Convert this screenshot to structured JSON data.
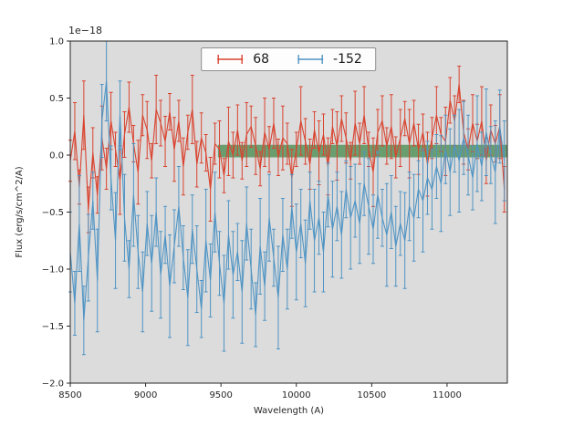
{
  "chart_data": {
    "type": "line",
    "title": "",
    "xlabel": "Wavelength (A)",
    "ylabel": "Flux (erg/s/cm^2/A)",
    "offset_text": "1e−18",
    "xlim": [
      8500,
      11400
    ],
    "ylim": [
      -2.0,
      1.0
    ],
    "xticks": [
      8500,
      9000,
      9500,
      10000,
      10500,
      11000
    ],
    "yticks": [
      -2.0,
      -1.5,
      -1.0,
      -0.5,
      0.0,
      0.5,
      1.0
    ],
    "grid": false,
    "legend_position": "upper center",
    "axes_bg": "#dcdcdc",
    "band": {
      "x0": 9480,
      "x1": 11400,
      "y0": -0.02,
      "y1": 0.09,
      "color": "rgba(46,125,50,0.65)"
    },
    "x": [
      8500,
      8530,
      8560,
      8590,
      8620,
      8650,
      8680,
      8710,
      8740,
      8770,
      8800,
      8830,
      8860,
      8890,
      8920,
      8950,
      8980,
      9010,
      9040,
      9070,
      9100,
      9130,
      9160,
      9190,
      9220,
      9250,
      9280,
      9310,
      9340,
      9370,
      9400,
      9430,
      9460,
      9490,
      9520,
      9550,
      9580,
      9610,
      9640,
      9670,
      9700,
      9730,
      9760,
      9790,
      9820,
      9850,
      9880,
      9910,
      9940,
      9970,
      10000,
      10030,
      10060,
      10090,
      10120,
      10150,
      10180,
      10210,
      10240,
      10270,
      10300,
      10330,
      10360,
      10390,
      10420,
      10450,
      10480,
      10510,
      10540,
      10570,
      10600,
      10630,
      10660,
      10690,
      10720,
      10750,
      10780,
      10810,
      10840,
      10870,
      10900,
      10930,
      10960,
      10990,
      11020,
      11050,
      11080,
      11110,
      11140,
      11170,
      11200,
      11230,
      11260,
      11290,
      11320,
      11350,
      11380
    ],
    "series": [
      {
        "name": "68",
        "color": "#d9432f",
        "values": [
          -0.05,
          0.21,
          -0.28,
          0.35,
          -0.48,
          0.02,
          -0.35,
          0.15,
          -0.12,
          0.3,
          0.05,
          -0.22,
          0.18,
          0.42,
          0.1,
          -0.15,
          0.35,
          0.22,
          -0.05,
          0.4,
          0.28,
          0.12,
          0.38,
          0.05,
          0.3,
          -0.1,
          0.2,
          0.4,
          -0.08,
          0.15,
          0.02,
          -0.3,
          0.1,
          0.05,
          -0.18,
          0.12,
          0.0,
          0.22,
          -0.05,
          0.18,
          0.25,
          0.08,
          -0.12,
          0.2,
          0.05,
          0.28,
          -0.02,
          0.15,
          0.1,
          -0.2,
          0.05,
          0.3,
          0.12,
          -0.08,
          0.22,
          0.02,
          0.18,
          -0.1,
          0.25,
          0.08,
          0.32,
          0.15,
          -0.05,
          0.28,
          0.1,
          0.35,
          0.05,
          -0.15,
          0.2,
          0.3,
          0.08,
          0.25,
          -0.02,
          0.15,
          0.32,
          0.1,
          0.28,
          0.05,
          0.2,
          -0.08,
          0.15,
          0.35,
          0.18,
          0.12,
          0.48,
          0.3,
          0.62,
          0.2,
          0.05,
          0.28,
          0.12,
          0.3,
          -0.05,
          0.22,
          0.1,
          0.25,
          -0.3
        ],
        "errors": [
          0.18,
          0.25,
          0.15,
          0.3,
          0.2,
          0.22,
          0.16,
          0.28,
          0.18,
          0.25,
          0.15,
          0.3,
          0.2,
          0.22,
          0.16,
          0.28,
          0.18,
          0.25,
          0.15,
          0.3,
          0.2,
          0.22,
          0.16,
          0.28,
          0.18,
          0.25,
          0.15,
          0.3,
          0.2,
          0.22,
          0.16,
          0.28,
          0.18,
          0.25,
          0.15,
          0.3,
          0.2,
          0.22,
          0.16,
          0.28,
          0.18,
          0.25,
          0.15,
          0.3,
          0.2,
          0.22,
          0.16,
          0.28,
          0.18,
          0.25,
          0.15,
          0.3,
          0.2,
          0.22,
          0.16,
          0.28,
          0.18,
          0.25,
          0.15,
          0.3,
          0.2,
          0.22,
          0.16,
          0.28,
          0.18,
          0.25,
          0.15,
          0.3,
          0.2,
          0.22,
          0.16,
          0.28,
          0.18,
          0.25,
          0.15,
          0.3,
          0.2,
          0.22,
          0.16,
          0.28,
          0.18,
          0.25,
          0.15,
          0.3,
          0.2,
          0.22,
          0.16,
          0.28,
          0.18,
          0.25,
          0.15,
          0.3,
          0.2,
          0.22,
          0.16,
          0.28,
          0.2
        ]
      },
      {
        "name": "-152",
        "color": "#4f94c4",
        "values": [
          -0.85,
          -1.3,
          -0.6,
          -1.45,
          -0.9,
          -0.4,
          -1.1,
          0.3,
          0.65,
          -0.2,
          -0.75,
          0.35,
          -0.55,
          -1.0,
          -0.35,
          -0.85,
          -1.2,
          -0.6,
          -0.95,
          -0.5,
          -1.05,
          -0.7,
          -1.15,
          -0.8,
          -0.45,
          -0.9,
          -1.25,
          -0.65,
          -1.0,
          -1.35,
          -0.75,
          -1.1,
          -0.5,
          -0.95,
          -1.3,
          -0.7,
          -1.05,
          -0.85,
          -1.2,
          -0.6,
          -1.0,
          -1.4,
          -0.8,
          -1.15,
          -0.55,
          -0.9,
          -1.25,
          -0.7,
          -1.0,
          -0.45,
          -0.85,
          -0.6,
          -0.95,
          -0.4,
          -0.75,
          -0.55,
          -0.85,
          -0.35,
          -0.65,
          -0.45,
          -0.7,
          -0.3,
          -0.55,
          -0.4,
          -0.6,
          -0.25,
          -0.45,
          -0.65,
          -0.35,
          -0.55,
          -0.7,
          -0.5,
          -0.8,
          -0.6,
          -0.75,
          -0.45,
          -0.55,
          -0.3,
          -0.4,
          -0.2,
          -0.3,
          -0.1,
          -0.25,
          0.05,
          -0.15,
          0.1,
          -0.05,
          0.15,
          0.0,
          -0.2,
          0.1,
          -0.1,
          0.2,
          0.0,
          -0.15,
          0.25,
          -0.05
        ],
        "errors": [
          0.35,
          0.28,
          0.42,
          0.3,
          0.38,
          0.25,
          0.45,
          0.32,
          0.35,
          0.28,
          0.42,
          0.3,
          0.38,
          0.25,
          0.45,
          0.32,
          0.35,
          0.28,
          0.42,
          0.3,
          0.38,
          0.25,
          0.45,
          0.32,
          0.35,
          0.28,
          0.42,
          0.3,
          0.38,
          0.25,
          0.45,
          0.32,
          0.35,
          0.28,
          0.42,
          0.3,
          0.38,
          0.25,
          0.45,
          0.32,
          0.35,
          0.28,
          0.42,
          0.3,
          0.38,
          0.25,
          0.45,
          0.32,
          0.35,
          0.28,
          0.42,
          0.3,
          0.38,
          0.25,
          0.45,
          0.32,
          0.35,
          0.28,
          0.42,
          0.3,
          0.38,
          0.25,
          0.45,
          0.32,
          0.35,
          0.28,
          0.42,
          0.3,
          0.38,
          0.25,
          0.45,
          0.32,
          0.35,
          0.28,
          0.42,
          0.3,
          0.38,
          0.25,
          0.45,
          0.32,
          0.35,
          0.28,
          0.42,
          0.3,
          0.38,
          0.25,
          0.45,
          0.32,
          0.35,
          0.28,
          0.42,
          0.3,
          0.38,
          0.25,
          0.45,
          0.32,
          0.35
        ]
      }
    ]
  }
}
